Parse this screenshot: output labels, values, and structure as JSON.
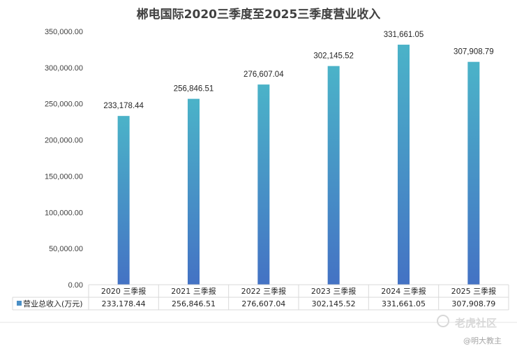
{
  "chart_data": {
    "type": "bar",
    "title": "郴电国际2020三季度至2025三季度营业收入",
    "categories": [
      "2020 三季报",
      "2021 三季报",
      "2022 三季报",
      "2023 三季报",
      "2024 三季报",
      "2025 三季报"
    ],
    "series": [
      {
        "name": "营业总收入(万元)",
        "values": [
          233178.44,
          256846.51,
          276607.04,
          302145.52,
          331661.05,
          307908.79
        ],
        "labels": [
          "233,178.44",
          "256,846.51",
          "276,607.04",
          "302,145.52",
          "331,661.05",
          "307,908.79"
        ]
      }
    ],
    "ylim": [
      0,
      350000
    ],
    "yticks": [
      0,
      50000,
      100000,
      150000,
      200000,
      250000,
      300000,
      350000
    ],
    "ytick_labels": [
      "0.00",
      "50,000.00",
      "100,000.00",
      "150,000.00",
      "200,000.00",
      "250,000.00",
      "300,000.00",
      "350,000.00"
    ],
    "grid": false,
    "data_table": true,
    "colors": {
      "bar_top": "#4bb3c8",
      "bar_bottom": "#4472c4",
      "legend_key": "#4a8fc6",
      "table_border": "#d9d9d9"
    }
  },
  "watermark": {
    "brand": "老虎社区",
    "user": "@明大教主"
  }
}
